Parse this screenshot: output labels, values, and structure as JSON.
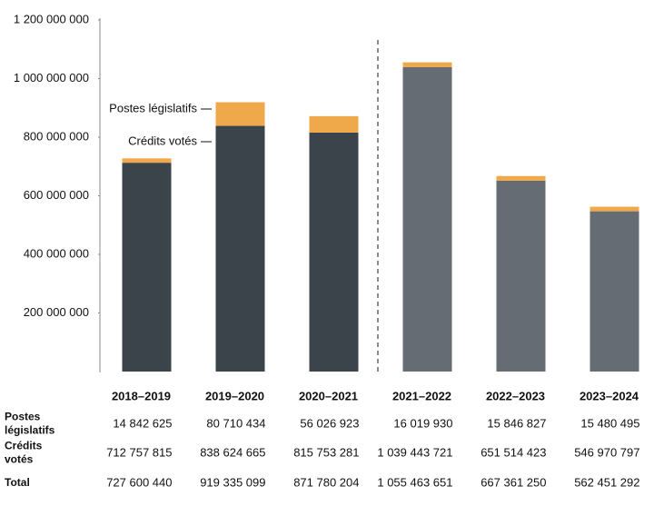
{
  "chart_data": {
    "type": "stacked-bar",
    "categories": [
      "2018–2019",
      "2019–2020",
      "2020–2021",
      "2021–2022",
      "2022–2023",
      "2023–2024"
    ],
    "series": [
      {
        "name": "Crédits votés",
        "colors": [
          "#3b434b",
          "#3b434b",
          "#3b434b",
          "#656c73",
          "#656c73",
          "#656c73"
        ],
        "values": [
          712757815,
          838624665,
          815753281,
          1039443721,
          651514423,
          546970797
        ],
        "value_labels": [
          "712 757 815",
          "838 624 665",
          "815 753 281",
          "1 039 443 721",
          "651 514 423",
          "546 970 797"
        ]
      },
      {
        "name": "Postes législatifs",
        "color": "#f0a94a",
        "values": [
          14842625,
          80710434,
          56026923,
          16019930,
          15846827,
          15480495
        ],
        "value_labels": [
          "14 842 625",
          "80 710 434",
          "56 026 923",
          "16 019 930",
          "15 846 827",
          "15 480 495"
        ]
      }
    ],
    "total_label": "Total",
    "totals": [
      727600440,
      919335099,
      871780204,
      1055463651,
      667361250,
      562451292
    ],
    "total_labels": [
      "727 600 440",
      "919 335 099",
      "871 780 204",
      "1 055 463 651",
      "667 361 250",
      "562 451 292"
    ],
    "ylim": [
      0,
      1200000000
    ],
    "yticks": [
      {
        "value": 200000000,
        "label": "200 000 000"
      },
      {
        "value": 400000000,
        "label": "400 000 000"
      },
      {
        "value": 600000000,
        "label": "600 000 000"
      },
      {
        "value": 800000000,
        "label": "800 000 000"
      },
      {
        "value": 1000000000,
        "label": "1 000 000 000"
      },
      {
        "value": 1200000000,
        "label": "1 200 000 000"
      }
    ]
  }
}
